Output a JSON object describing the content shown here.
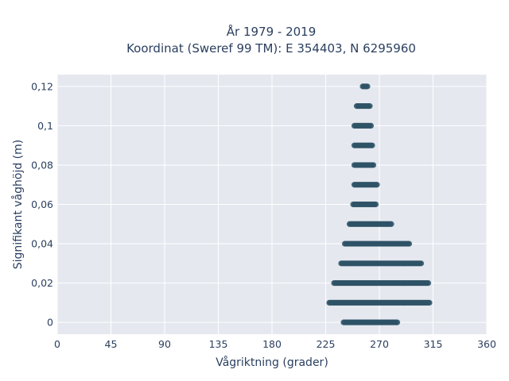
{
  "chart_data": {
    "type": "scatter",
    "title_lines": [
      "År 1979 - 2019",
      "Koordinat (Sweref 99 TM): E 354403, N 6295960"
    ],
    "xlabel": "Vågriktning (grader)",
    "ylabel": "Signifikant våghöjd (m)",
    "xlim": [
      0,
      360
    ],
    "ylim": [
      -0.006,
      0.126
    ],
    "x_ticks": [
      0,
      45,
      90,
      135,
      180,
      225,
      270,
      315,
      360
    ],
    "x_tick_labels": [
      "0",
      "45",
      "90",
      "135",
      "180",
      "225",
      "270",
      "315",
      "360"
    ],
    "y_ticks": [
      0,
      0.02,
      0.04,
      0.06,
      0.08,
      0.1,
      0.12
    ],
    "y_tick_labels": [
      "0",
      "0,02",
      "0,04",
      "0,06",
      "0,08",
      "0,1",
      "0,12"
    ],
    "grid": true,
    "marker_color": "#2e5266",
    "plot_background": "#e5e8ef",
    "series": [
      {
        "note": "Each band: points at the given wave height spanning the direction range",
        "bands": [
          {
            "y": 0.0,
            "x_range": [
              240,
              285
            ]
          },
          {
            "y": 0.01,
            "x_range": [
              228,
              312
            ]
          },
          {
            "y": 0.02,
            "x_range": [
              232,
              311
            ]
          },
          {
            "y": 0.03,
            "x_range": [
              238,
              305
            ]
          },
          {
            "y": 0.04,
            "x_range": [
              241,
              295
            ]
          },
          {
            "y": 0.05,
            "x_range": [
              245,
              280
            ]
          },
          {
            "y": 0.06,
            "x_range": [
              248,
              267
            ]
          },
          {
            "y": 0.07,
            "x_range": [
              249,
              268
            ]
          },
          {
            "y": 0.08,
            "x_range": [
              249,
              265
            ]
          },
          {
            "y": 0.09,
            "x_range": [
              249,
              264
            ]
          },
          {
            "y": 0.1,
            "x_range": [
              249,
              263
            ]
          },
          {
            "y": 0.11,
            "x_range": [
              251,
              262
            ]
          },
          {
            "y": 0.12,
            "x_range": [
              256,
              260
            ]
          }
        ]
      }
    ]
  }
}
